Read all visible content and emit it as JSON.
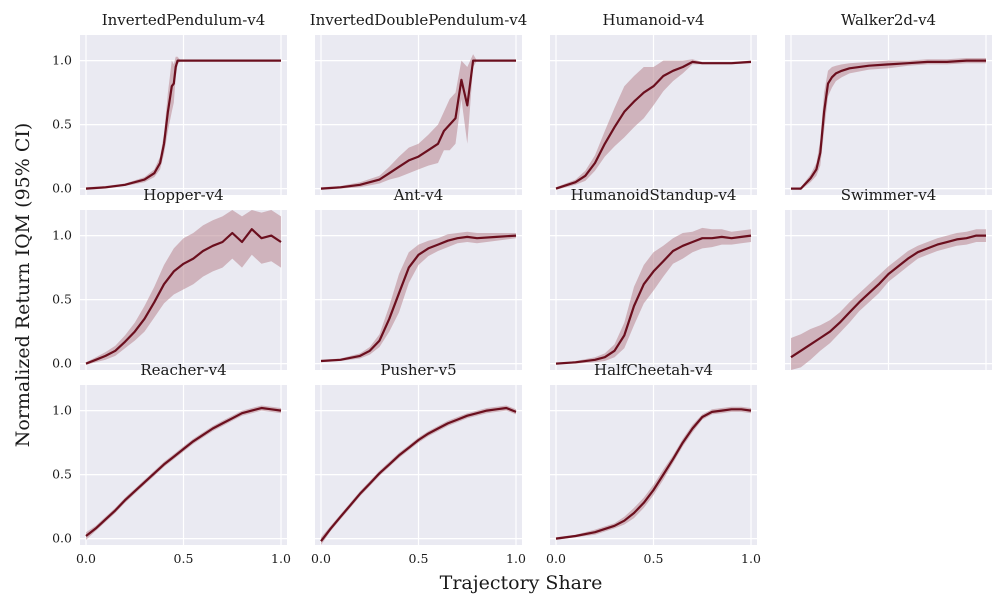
{
  "figure": {
    "xlabel": "Trajectory Share",
    "ylabel": "Normalized Return IQM (95% CI)"
  },
  "colors": {
    "line": "#6b0f1e",
    "band": "#b88590",
    "panel_bg": "#eaeaf2",
    "grid": "#ffffff"
  },
  "chart_data": [
    {
      "type": "line",
      "title": "InvertedPendulum-v4",
      "xlim": [
        0,
        1
      ],
      "ylim": [
        -0.05,
        1.2
      ],
      "xticks": [
        "0.0",
        "0.5",
        "1.0"
      ],
      "yticks": [
        "0.0",
        "0.5",
        "1.0"
      ],
      "x": [
        0,
        0.1,
        0.2,
        0.3,
        0.35,
        0.38,
        0.4,
        0.42,
        0.44,
        0.45,
        0.46,
        0.47,
        0.48,
        0.5,
        0.6,
        0.7,
        0.8,
        0.9,
        1.0
      ],
      "y": [
        0,
        0.01,
        0.03,
        0.07,
        0.12,
        0.2,
        0.35,
        0.6,
        0.8,
        0.82,
        0.95,
        1.0,
        1.0,
        1.0,
        1.0,
        1.0,
        1.0,
        1.0,
        1.0
      ],
      "band": [
        0.01,
        0.01,
        0.01,
        0.02,
        0.03,
        0.05,
        0.08,
        0.15,
        0.2,
        0.15,
        0.08,
        0.03,
        0.01,
        0,
        0,
        0,
        0,
        0,
        0
      ]
    },
    {
      "type": "line",
      "title": "InvertedDoublePendulum-v4",
      "xlim": [
        0,
        1
      ],
      "ylim": [
        -0.05,
        1.2
      ],
      "xticks": [
        "0.0",
        "0.5",
        "1.0"
      ],
      "yticks": [
        "0.0",
        "0.5",
        "1.0"
      ],
      "x": [
        0,
        0.1,
        0.2,
        0.3,
        0.35,
        0.4,
        0.45,
        0.5,
        0.55,
        0.6,
        0.63,
        0.66,
        0.69,
        0.72,
        0.75,
        0.78,
        0.8,
        0.9,
        1.0
      ],
      "y": [
        0,
        0.01,
        0.03,
        0.07,
        0.12,
        0.17,
        0.22,
        0.25,
        0.3,
        0.35,
        0.45,
        0.5,
        0.55,
        0.85,
        0.65,
        1.0,
        1.0,
        1.0,
        1.0
      ],
      "band": [
        0.01,
        0.01,
        0.02,
        0.03,
        0.05,
        0.08,
        0.1,
        0.1,
        0.12,
        0.15,
        0.15,
        0.2,
        0.2,
        0.15,
        0.3,
        0.05,
        0,
        0,
        0
      ]
    },
    {
      "type": "line",
      "title": "Humanoid-v4",
      "xlim": [
        0,
        1
      ],
      "ylim": [
        -0.05,
        1.2
      ],
      "xticks": [
        "0.0",
        "0.5",
        "1.0"
      ],
      "yticks": [
        "0.0",
        "0.5",
        "1.0"
      ],
      "x": [
        0,
        0.1,
        0.15,
        0.2,
        0.25,
        0.3,
        0.35,
        0.4,
        0.45,
        0.5,
        0.55,
        0.6,
        0.65,
        0.7,
        0.75,
        0.8,
        0.9,
        1.0
      ],
      "y": [
        0,
        0.05,
        0.1,
        0.2,
        0.35,
        0.48,
        0.6,
        0.68,
        0.75,
        0.8,
        0.88,
        0.92,
        0.95,
        0.99,
        0.98,
        0.98,
        0.98,
        0.99
      ],
      "band": [
        0.01,
        0.02,
        0.04,
        0.06,
        0.1,
        0.15,
        0.2,
        0.2,
        0.2,
        0.15,
        0.12,
        0.08,
        0.05,
        0.02,
        0.01,
        0.01,
        0.01,
        0.01
      ]
    },
    {
      "type": "line",
      "title": "Walker2d-v4",
      "xlim": [
        0,
        1
      ],
      "ylim": [
        -0.05,
        1.2
      ],
      "xticks": [
        "0.0",
        "0.5",
        "1.0"
      ],
      "yticks": [
        "0.0",
        "0.5",
        "1.0"
      ],
      "x": [
        0,
        0.05,
        0.1,
        0.13,
        0.15,
        0.17,
        0.19,
        0.21,
        0.23,
        0.26,
        0.3,
        0.4,
        0.5,
        0.6,
        0.7,
        0.8,
        0.9,
        1.0
      ],
      "y": [
        0,
        0.0,
        0.08,
        0.15,
        0.28,
        0.6,
        0.82,
        0.87,
        0.9,
        0.92,
        0.94,
        0.96,
        0.97,
        0.98,
        0.99,
        0.99,
        1.0,
        1.0
      ],
      "band": [
        0,
        0.01,
        0.03,
        0.05,
        0.1,
        0.15,
        0.1,
        0.08,
        0.06,
        0.05,
        0.04,
        0.03,
        0.03,
        0.02,
        0.02,
        0.02,
        0.02,
        0.02
      ]
    },
    {
      "type": "line",
      "title": "Hopper-v4",
      "xlim": [
        0,
        1
      ],
      "ylim": [
        -0.05,
        1.2
      ],
      "xticks": [
        "0.0",
        "0.5",
        "1.0"
      ],
      "yticks": [
        "0.0",
        "0.5",
        "1.0"
      ],
      "x": [
        0,
        0.05,
        0.1,
        0.15,
        0.2,
        0.25,
        0.3,
        0.35,
        0.4,
        0.45,
        0.5,
        0.55,
        0.6,
        0.65,
        0.7,
        0.75,
        0.8,
        0.85,
        0.9,
        0.95,
        1.0
      ],
      "y": [
        0,
        0.03,
        0.06,
        0.1,
        0.17,
        0.25,
        0.35,
        0.48,
        0.62,
        0.72,
        0.78,
        0.82,
        0.88,
        0.92,
        0.95,
        1.02,
        0.95,
        1.05,
        0.98,
        1.0,
        0.95
      ],
      "band": [
        0.01,
        0.02,
        0.03,
        0.04,
        0.05,
        0.07,
        0.1,
        0.12,
        0.15,
        0.18,
        0.2,
        0.2,
        0.2,
        0.2,
        0.2,
        0.2,
        0.2,
        0.2,
        0.2,
        0.2,
        0.2
      ]
    },
    {
      "type": "line",
      "title": "Ant-v4",
      "xlim": [
        0,
        1
      ],
      "ylim": [
        -0.05,
        1.2
      ],
      "xticks": [
        "0.0",
        "0.5",
        "1.0"
      ],
      "yticks": [
        "0.0",
        "0.5",
        "1.0"
      ],
      "x": [
        0,
        0.1,
        0.2,
        0.25,
        0.3,
        0.35,
        0.4,
        0.45,
        0.5,
        0.55,
        0.6,
        0.65,
        0.7,
        0.75,
        0.8,
        0.9,
        1.0
      ],
      "y": [
        0.02,
        0.03,
        0.06,
        0.1,
        0.18,
        0.35,
        0.55,
        0.75,
        0.85,
        0.9,
        0.93,
        0.96,
        0.98,
        0.99,
        0.98,
        0.99,
        1.0
      ],
      "band": [
        0.01,
        0.01,
        0.02,
        0.03,
        0.05,
        0.1,
        0.15,
        0.12,
        0.08,
        0.06,
        0.05,
        0.05,
        0.04,
        0.04,
        0.04,
        0.03,
        0.02
      ]
    },
    {
      "type": "line",
      "title": "HumanoidStandup-v4",
      "xlim": [
        0,
        1
      ],
      "ylim": [
        -0.05,
        1.2
      ],
      "xticks": [
        "0.0",
        "0.5",
        "1.0"
      ],
      "yticks": [
        "0.0",
        "0.5",
        "1.0"
      ],
      "x": [
        0,
        0.1,
        0.2,
        0.25,
        0.3,
        0.35,
        0.4,
        0.45,
        0.5,
        0.55,
        0.6,
        0.65,
        0.7,
        0.75,
        0.8,
        0.85,
        0.9,
        0.95,
        1.0
      ],
      "y": [
        0,
        0.01,
        0.03,
        0.05,
        0.1,
        0.22,
        0.45,
        0.62,
        0.72,
        0.8,
        0.88,
        0.92,
        0.95,
        0.98,
        0.98,
        0.99,
        0.98,
        0.99,
        1.0
      ],
      "band": [
        0,
        0.01,
        0.02,
        0.03,
        0.05,
        0.1,
        0.15,
        0.15,
        0.15,
        0.12,
        0.1,
        0.1,
        0.08,
        0.08,
        0.07,
        0.06,
        0.05,
        0.05,
        0.05
      ]
    },
    {
      "type": "line",
      "title": "Swimmer-v4",
      "xlim": [
        0,
        1
      ],
      "ylim": [
        -0.05,
        1.2
      ],
      "xticks": [
        "0.0",
        "0.5",
        "1.0"
      ],
      "yticks": [
        "0.0",
        "0.5",
        "1.0"
      ],
      "x": [
        0,
        0.05,
        0.1,
        0.15,
        0.2,
        0.25,
        0.3,
        0.35,
        0.4,
        0.45,
        0.5,
        0.55,
        0.6,
        0.65,
        0.7,
        0.75,
        0.8,
        0.85,
        0.9,
        0.95,
        1.0
      ],
      "y": [
        0.05,
        0.1,
        0.15,
        0.2,
        0.25,
        0.32,
        0.4,
        0.48,
        0.55,
        0.62,
        0.7,
        0.76,
        0.82,
        0.87,
        0.9,
        0.93,
        0.95,
        0.97,
        0.98,
        1.0,
        1.0
      ],
      "band": [
        0.15,
        0.13,
        0.12,
        0.1,
        0.09,
        0.08,
        0.08,
        0.07,
        0.07,
        0.07,
        0.06,
        0.06,
        0.06,
        0.05,
        0.05,
        0.05,
        0.05,
        0.05,
        0.05,
        0.05,
        0.05
      ]
    },
    {
      "type": "line",
      "title": "Reacher-v4",
      "xlim": [
        0,
        1
      ],
      "ylim": [
        -0.05,
        1.2
      ],
      "xticks": [
        "0.0",
        "0.5",
        "1.0"
      ],
      "yticks": [
        "0.0",
        "0.5",
        "1.0"
      ],
      "x": [
        0,
        0.05,
        0.1,
        0.15,
        0.2,
        0.25,
        0.3,
        0.35,
        0.4,
        0.45,
        0.5,
        0.55,
        0.6,
        0.65,
        0.7,
        0.75,
        0.8,
        0.85,
        0.9,
        0.95,
        1.0
      ],
      "y": [
        0.02,
        0.08,
        0.15,
        0.22,
        0.3,
        0.37,
        0.44,
        0.51,
        0.58,
        0.64,
        0.7,
        0.76,
        0.81,
        0.86,
        0.9,
        0.94,
        0.98,
        1.0,
        1.02,
        1.01,
        1.0
      ],
      "band": [
        0.03,
        0.02,
        0.02,
        0.02,
        0.02,
        0.02,
        0.02,
        0.02,
        0.02,
        0.02,
        0.02,
        0.02,
        0.02,
        0.02,
        0.02,
        0.02,
        0.02,
        0.02,
        0.02,
        0.02,
        0.02
      ]
    },
    {
      "type": "line",
      "title": "Pusher-v5",
      "xlim": [
        0,
        1
      ],
      "ylim": [
        -0.05,
        1.2
      ],
      "xticks": [
        "0.0",
        "0.5",
        "1.0"
      ],
      "yticks": [
        "0.0",
        "0.5",
        "1.0"
      ],
      "x": [
        0,
        0.05,
        0.1,
        0.15,
        0.2,
        0.25,
        0.3,
        0.35,
        0.4,
        0.45,
        0.5,
        0.55,
        0.6,
        0.65,
        0.7,
        0.75,
        0.8,
        0.85,
        0.9,
        0.95,
        1.0
      ],
      "y": [
        -0.02,
        0.08,
        0.17,
        0.26,
        0.35,
        0.43,
        0.51,
        0.58,
        0.65,
        0.71,
        0.77,
        0.82,
        0.86,
        0.9,
        0.93,
        0.96,
        0.98,
        1.0,
        1.01,
        1.02,
        0.99
      ],
      "band": [
        0.03,
        0.02,
        0.02,
        0.02,
        0.02,
        0.02,
        0.02,
        0.02,
        0.02,
        0.02,
        0.02,
        0.02,
        0.02,
        0.02,
        0.02,
        0.02,
        0.02,
        0.02,
        0.02,
        0.02,
        0.02
      ]
    },
    {
      "type": "line",
      "title": "HalfCheetah-v4",
      "xlim": [
        0,
        1
      ],
      "ylim": [
        -0.05,
        1.2
      ],
      "xticks": [
        "0.0",
        "0.5",
        "1.0"
      ],
      "yticks": [
        "0.0",
        "0.5",
        "1.0"
      ],
      "x": [
        0,
        0.1,
        0.2,
        0.3,
        0.35,
        0.4,
        0.45,
        0.5,
        0.55,
        0.6,
        0.65,
        0.7,
        0.75,
        0.8,
        0.85,
        0.9,
        0.95,
        1.0
      ],
      "y": [
        0.0,
        0.02,
        0.05,
        0.1,
        0.14,
        0.2,
        0.28,
        0.38,
        0.5,
        0.62,
        0.75,
        0.86,
        0.95,
        0.99,
        1.0,
        1.01,
        1.01,
        1.0
      ],
      "band": [
        0.01,
        0.01,
        0.02,
        0.02,
        0.03,
        0.04,
        0.04,
        0.04,
        0.04,
        0.03,
        0.03,
        0.03,
        0.02,
        0.02,
        0.02,
        0.02,
        0.02,
        0.02
      ]
    }
  ]
}
